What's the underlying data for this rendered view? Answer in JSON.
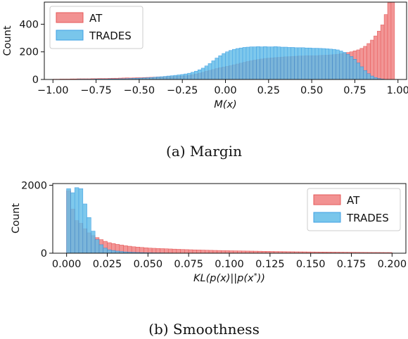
{
  "captions": {
    "a": "(a) Margin",
    "b": "(b) Smoothness"
  },
  "colors": {
    "AT_fill": "#f08080",
    "AT_edge": "#e23b3b",
    "TRADES_fill": "#62bde8",
    "TRADES_edge": "#1e90e0"
  },
  "chart_data": [
    {
      "type": "bar",
      "subtype": "histogram",
      "title": "",
      "xlabel": "M(x)",
      "ylabel": "Count",
      "xlim": [
        -1.05,
        1.05
      ],
      "ylim": [
        0,
        560
      ],
      "xticks": [
        -1.0,
        -0.75,
        -0.5,
        -0.25,
        0.0,
        0.25,
        0.5,
        0.75,
        1.0
      ],
      "xtick_labels": [
        "−1.00",
        "−0.75",
        "−0.50",
        "−0.25",
        "0.00",
        "0.25",
        "0.50",
        "0.75",
        "1.00"
      ],
      "yticks": [
        0,
        200,
        400
      ],
      "ytick_labels": [
        "0",
        "200",
        "400"
      ],
      "legend": {
        "position": "top-left",
        "entries": [
          "AT",
          "TRADES"
        ]
      },
      "bins": {
        "start": -1.0,
        "width": 0.02,
        "count": 100
      },
      "series": [
        {
          "name": "AT",
          "values": [
            2,
            2,
            3,
            3,
            3,
            4,
            4,
            5,
            5,
            5,
            5,
            6,
            6,
            7,
            7,
            7,
            8,
            9,
            9,
            10,
            11,
            12,
            11,
            12,
            13,
            13,
            14,
            15,
            16,
            17,
            18,
            18,
            19,
            20,
            21,
            22,
            23,
            25,
            27,
            30,
            34,
            39,
            45,
            52,
            60,
            66,
            72,
            79,
            85,
            90,
            95,
            100,
            106,
            112,
            118,
            124,
            130,
            135,
            140,
            144,
            148,
            152,
            154,
            156,
            158,
            160,
            162,
            164,
            165,
            167,
            168,
            170,
            170,
            172,
            172,
            172,
            172,
            174,
            175,
            176,
            178,
            180,
            182,
            186,
            190,
            195,
            200,
            207,
            214,
            225,
            240,
            260,
            285,
            315,
            350,
            395,
            470,
            555,
            560,
            0
          ]
        },
        {
          "name": "TRADES",
          "values": [
            0,
            1,
            1,
            1,
            1,
            1,
            1,
            2,
            2,
            2,
            2,
            2,
            3,
            3,
            3,
            3,
            4,
            4,
            4,
            5,
            5,
            6,
            7,
            8,
            9,
            10,
            11,
            12,
            14,
            16,
            18,
            20,
            22,
            25,
            27,
            30,
            33,
            36,
            40,
            45,
            52,
            60,
            70,
            82,
            98,
            115,
            135,
            155,
            172,
            188,
            200,
            210,
            218,
            224,
            228,
            232,
            234,
            236,
            236,
            238,
            236,
            238,
            236,
            236,
            238,
            236,
            234,
            234,
            232,
            232,
            230,
            230,
            230,
            228,
            228,
            226,
            226,
            225,
            224,
            222,
            220,
            218,
            214,
            206,
            196,
            182,
            166,
            146,
            120,
            92,
            65,
            42,
            25,
            14,
            7,
            3,
            1,
            0,
            0,
            0
          ]
        }
      ]
    },
    {
      "type": "bar",
      "subtype": "histogram",
      "title": "",
      "xlabel": "KL(p(x)||p(x*))",
      "ylabel": "Count",
      "xlim": [
        -0.0085,
        0.2085
      ],
      "ylim": [
        0,
        2050
      ],
      "xticks": [
        0.0,
        0.025,
        0.05,
        0.075,
        0.1,
        0.125,
        0.15,
        0.175,
        0.2
      ],
      "xtick_labels": [
        "0.000",
        "0.025",
        "0.050",
        "0.075",
        "0.100",
        "0.125",
        "0.150",
        "0.175",
        "0.200"
      ],
      "yticks": [
        0,
        2000
      ],
      "ytick_labels": [
        "0",
        "2000"
      ],
      "legend": {
        "position": "top-right",
        "entries": [
          "AT",
          "TRADES"
        ]
      },
      "bins": {
        "start": 0.0,
        "width": 0.0025,
        "count": 80
      },
      "series": [
        {
          "name": "AT",
          "values": [
            1840,
            1300,
            960,
            880,
            720,
            600,
            520,
            460,
            400,
            350,
            310,
            285,
            260,
            240,
            220,
            205,
            190,
            180,
            170,
            160,
            150,
            145,
            140,
            135,
            130,
            125,
            120,
            115,
            110,
            106,
            102,
            98,
            95,
            92,
            88,
            85,
            82,
            80,
            77,
            75,
            72,
            70,
            68,
            66,
            64,
            62,
            60,
            58,
            56,
            54,
            52,
            50,
            48,
            47,
            45,
            44,
            42,
            41,
            40,
            38,
            37,
            36,
            35,
            34,
            33,
            32,
            31,
            30,
            29,
            28,
            27,
            26,
            25,
            24,
            23,
            22,
            22,
            21,
            20,
            20
          ]
        },
        {
          "name": "TRADES",
          "values": [
            1900,
            1780,
            1930,
            1900,
            1450,
            1050,
            650,
            400,
            250,
            150,
            100,
            80,
            62,
            48,
            38,
            30,
            25,
            20,
            16,
            13,
            11,
            9,
            8,
            7,
            6,
            5,
            4,
            4,
            3,
            3,
            3,
            2,
            2,
            2,
            2,
            1,
            1,
            1,
            1,
            1,
            1,
            1,
            0,
            0,
            0,
            0,
            0,
            0,
            0,
            0,
            0,
            0,
            0,
            0,
            0,
            0,
            0,
            0,
            0,
            0,
            0,
            0,
            0,
            0,
            0,
            0,
            0,
            0,
            0,
            0,
            0,
            0,
            0,
            0,
            0,
            0,
            0,
            0,
            0,
            0
          ]
        }
      ]
    }
  ]
}
